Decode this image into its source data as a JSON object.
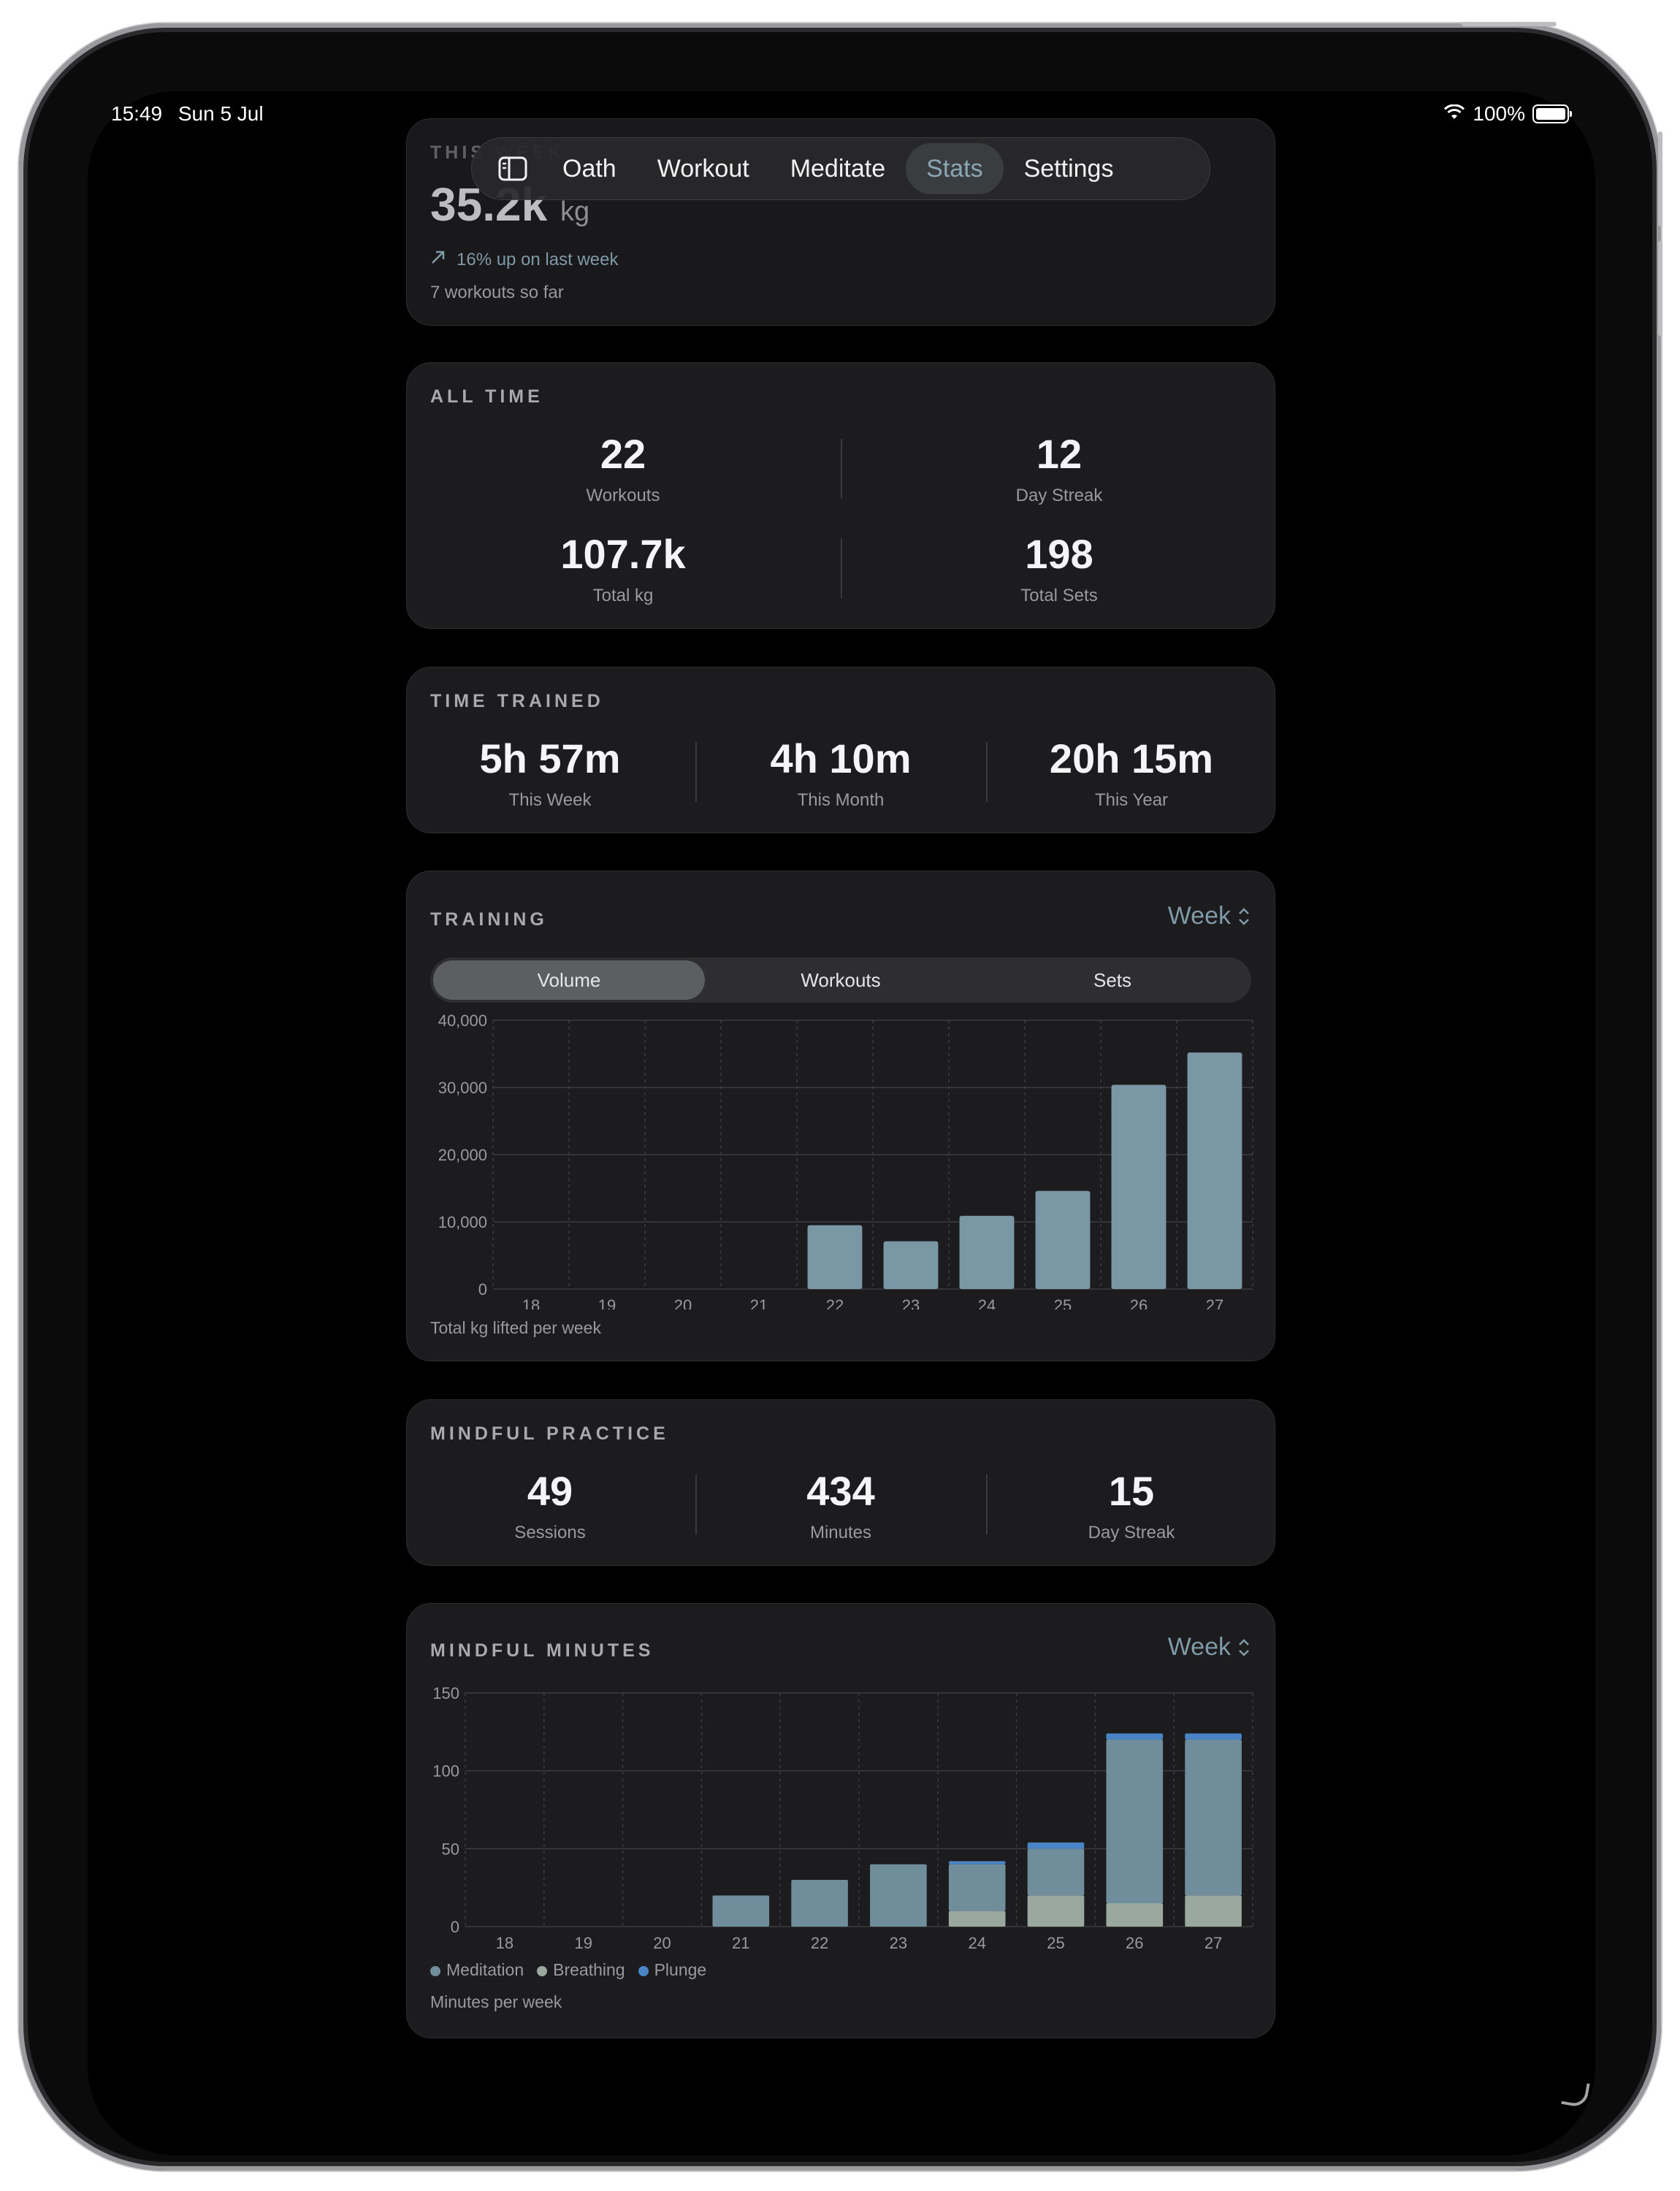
{
  "status_bar": {
    "time": "15:49",
    "date": "Sun 5 Jul",
    "battery": "100%"
  },
  "tabs": [
    {
      "label": "Oath"
    },
    {
      "label": "Workout"
    },
    {
      "label": "Meditate"
    },
    {
      "label": "Stats",
      "active": true
    },
    {
      "label": "Settings"
    }
  ],
  "this_week": {
    "title": "THIS WEEK",
    "volume": "35.2k",
    "unit": "kg",
    "trend": "16% up on last week",
    "workouts_note": "7 workouts so far"
  },
  "all_time": {
    "title": "ALL TIME",
    "stats": [
      {
        "value": "22",
        "label": "Workouts"
      },
      {
        "value": "12",
        "label": "Day Streak"
      },
      {
        "value": "107.7k",
        "label": "Total kg"
      },
      {
        "value": "198",
        "label": "Total Sets"
      }
    ]
  },
  "time_trained": {
    "title": "TIME TRAINED",
    "stats": [
      {
        "value": "5h 57m",
        "label": "This Week"
      },
      {
        "value": "4h 10m",
        "label": "This Month"
      },
      {
        "value": "20h 15m",
        "label": "This Year"
      }
    ]
  },
  "training": {
    "title": "TRAINING",
    "range_picker": "Week",
    "segments": [
      "Volume",
      "Workouts",
      "Sets"
    ],
    "active_segment": "Volume",
    "caption": "Total kg lifted per week"
  },
  "mindful_practice": {
    "title": "MINDFUL PRACTICE",
    "stats": [
      {
        "value": "49",
        "label": "Sessions"
      },
      {
        "value": "434",
        "label": "Minutes"
      },
      {
        "value": "15",
        "label": "Day Streak"
      }
    ]
  },
  "mindful_minutes": {
    "title": "MINDFUL MINUTES",
    "range_picker": "Week",
    "legend": [
      "Meditation",
      "Breathing",
      "Plunge"
    ],
    "caption": "Minutes per week"
  },
  "colors": {
    "accent": "#8aa6b4",
    "bar": "#7a97a5",
    "meditation": "#6f8d9b",
    "breathing": "#9aa8a0",
    "plunge": "#4a84c4"
  },
  "chart_data": [
    {
      "type": "bar",
      "categories": [
        "18",
        "19",
        "20",
        "21",
        "22",
        "23",
        "24",
        "25",
        "26",
        "27"
      ],
      "values": [
        0,
        0,
        0,
        0,
        9500,
        7100,
        10900,
        14600,
        30400,
        35200
      ],
      "yticks": [
        "0",
        "10,000",
        "20,000",
        "30,000",
        "40,000"
      ],
      "ylim": [
        0,
        40000
      ],
      "xlabel": "",
      "ylabel": "",
      "grid": true
    },
    {
      "type": "bar",
      "stacked": true,
      "categories": [
        "18",
        "19",
        "20",
        "21",
        "22",
        "23",
        "24",
        "25",
        "26",
        "27"
      ],
      "yticks": [
        "0",
        "50",
        "100",
        "150"
      ],
      "ylim": [
        0,
        150
      ],
      "series": [
        {
          "name": "Breathing",
          "values": [
            0,
            0,
            0,
            0,
            0,
            0,
            10,
            20,
            15,
            20
          ]
        },
        {
          "name": "Meditation",
          "values": [
            0,
            0,
            0,
            20,
            30,
            40,
            30,
            30,
            105,
            100
          ]
        },
        {
          "name": "Plunge",
          "values": [
            0,
            0,
            0,
            0,
            0,
            0,
            2,
            4,
            4,
            4
          ]
        }
      ],
      "grid": true
    }
  ]
}
